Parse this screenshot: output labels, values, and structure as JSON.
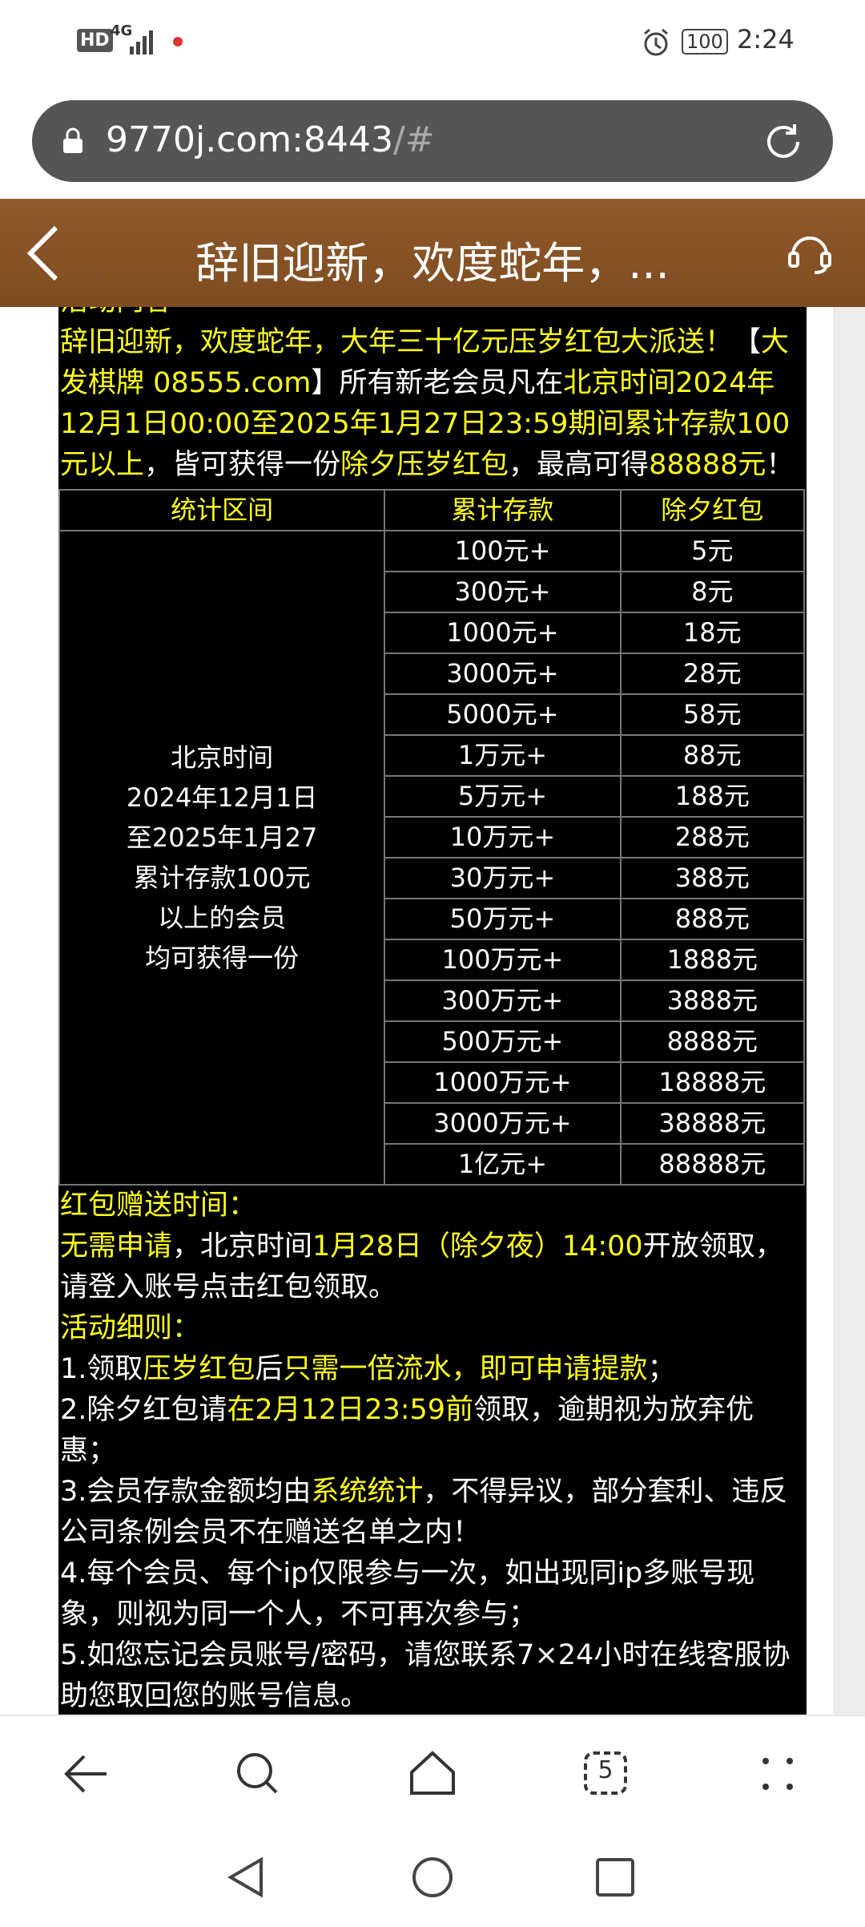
{
  "status_bar": {
    "hd": "HD",
    "network": "4G",
    "battery": "100",
    "time": "2:24"
  },
  "address_bar": {
    "host": "9770j.com:8443",
    "path": "/#"
  },
  "header": {
    "title": "辞旧迎新，欢度蛇年，..."
  },
  "content": {
    "section_title": "活动内容",
    "intro": [
      {
        "text": "辞旧迎新，欢度蛇年，大年三十亿元压岁红包大派送！",
        "color": "#ffff1a"
      },
      {
        "text": "【",
        "color": "#ffffff"
      },
      {
        "text": "大发棋牌 08555.com",
        "color": "#ffff1a"
      },
      {
        "text": "】所有新老会员凡在",
        "color": "#ffffff"
      },
      {
        "text": "北京时间2024年12月1日00:00至2025年1月27日23:59期间累计存款100元以上",
        "color": "#ffff1a"
      },
      {
        "text": "，皆可获得一份",
        "color": "#ffffff"
      },
      {
        "text": "除夕压岁红包",
        "color": "#ffff1a"
      },
      {
        "text": "，最高可得",
        "color": "#ffffff"
      },
      {
        "text": "88888元",
        "color": "#ffff1a"
      },
      {
        "text": "！",
        "color": "#ffffff"
      }
    ],
    "table": {
      "headers": [
        "统计区间",
        "累计存款",
        "除夕红包"
      ],
      "period": [
        "北京时间",
        "2024年12月1日",
        "至2025年1月27",
        "累计存款100元",
        "以上的会员",
        "均可获得一份"
      ],
      "rows": [
        [
          "100元+",
          "5元"
        ],
        [
          "300元+",
          "8元"
        ],
        [
          "1000元+",
          "18元"
        ],
        [
          "3000元+",
          "28元"
        ],
        [
          "5000元+",
          "58元"
        ],
        [
          "1万元+",
          "88元"
        ],
        [
          "5万元+",
          "188元"
        ],
        [
          "10万元+",
          "288元"
        ],
        [
          "30万元+",
          "388元"
        ],
        [
          "50万元+",
          "888元"
        ],
        [
          "100万元+",
          "1888元"
        ],
        [
          "300万元+",
          "3888元"
        ],
        [
          "500万元+",
          "8888元"
        ],
        [
          "1000万元+",
          "18888元"
        ],
        [
          "3000万元+",
          "38888元"
        ],
        [
          "1亿元+",
          "88888元"
        ]
      ]
    },
    "blocks": [
      [
        {
          "text": "红包赠送时间：",
          "color": "#ffff1a"
        }
      ],
      [
        {
          "text": "无需申请",
          "color": "#ffff1a"
        },
        {
          "text": "，北京时间",
          "color": "#ffffff"
        },
        {
          "text": "1月28日（除夕夜）14:00",
          "color": "#ffff1a"
        },
        {
          "text": "开放领取，请登入账号点击红包领取。",
          "color": "#ffffff"
        }
      ],
      [
        {
          "text": "活动细则：",
          "color": "#ffff1a"
        }
      ],
      [
        {
          "text": "1.领取",
          "color": "#ffffff"
        },
        {
          "text": "压岁红包",
          "color": "#ffff1a"
        },
        {
          "text": "后",
          "color": "#ffffff"
        },
        {
          "text": "只需一倍流水，即可申请提款",
          "color": "#ffff1a"
        },
        {
          "text": "；",
          "color": "#ffffff"
        }
      ],
      [
        {
          "text": "2.除夕红包请",
          "color": "#ffffff"
        },
        {
          "text": "在2月12日23:59前",
          "color": "#ffff1a"
        },
        {
          "text": "领取，逾期视为放弃优惠；",
          "color": "#ffffff"
        }
      ],
      [
        {
          "text": "3.会员存款金额均由",
          "color": "#ffffff"
        },
        {
          "text": "系统统计",
          "color": "#ffff1a"
        },
        {
          "text": "，不得异议，部分套利、违反公司条例会员不在赠送名单之内！",
          "color": "#ffffff"
        }
      ],
      [
        {
          "text": "4.每个会员、每个ip仅限参与一次，如出现同ip多账号现象，则视为同一个人，不可再次参与；",
          "color": "#ffffff"
        }
      ],
      [
        {
          "text": "5.如您忘记会员账号/密码，请您联系7×24小时在线客服协助您取回您的账号信息。",
          "color": "#ffffff"
        }
      ]
    ]
  },
  "bottom_nav": {
    "tab_count": "5"
  }
}
